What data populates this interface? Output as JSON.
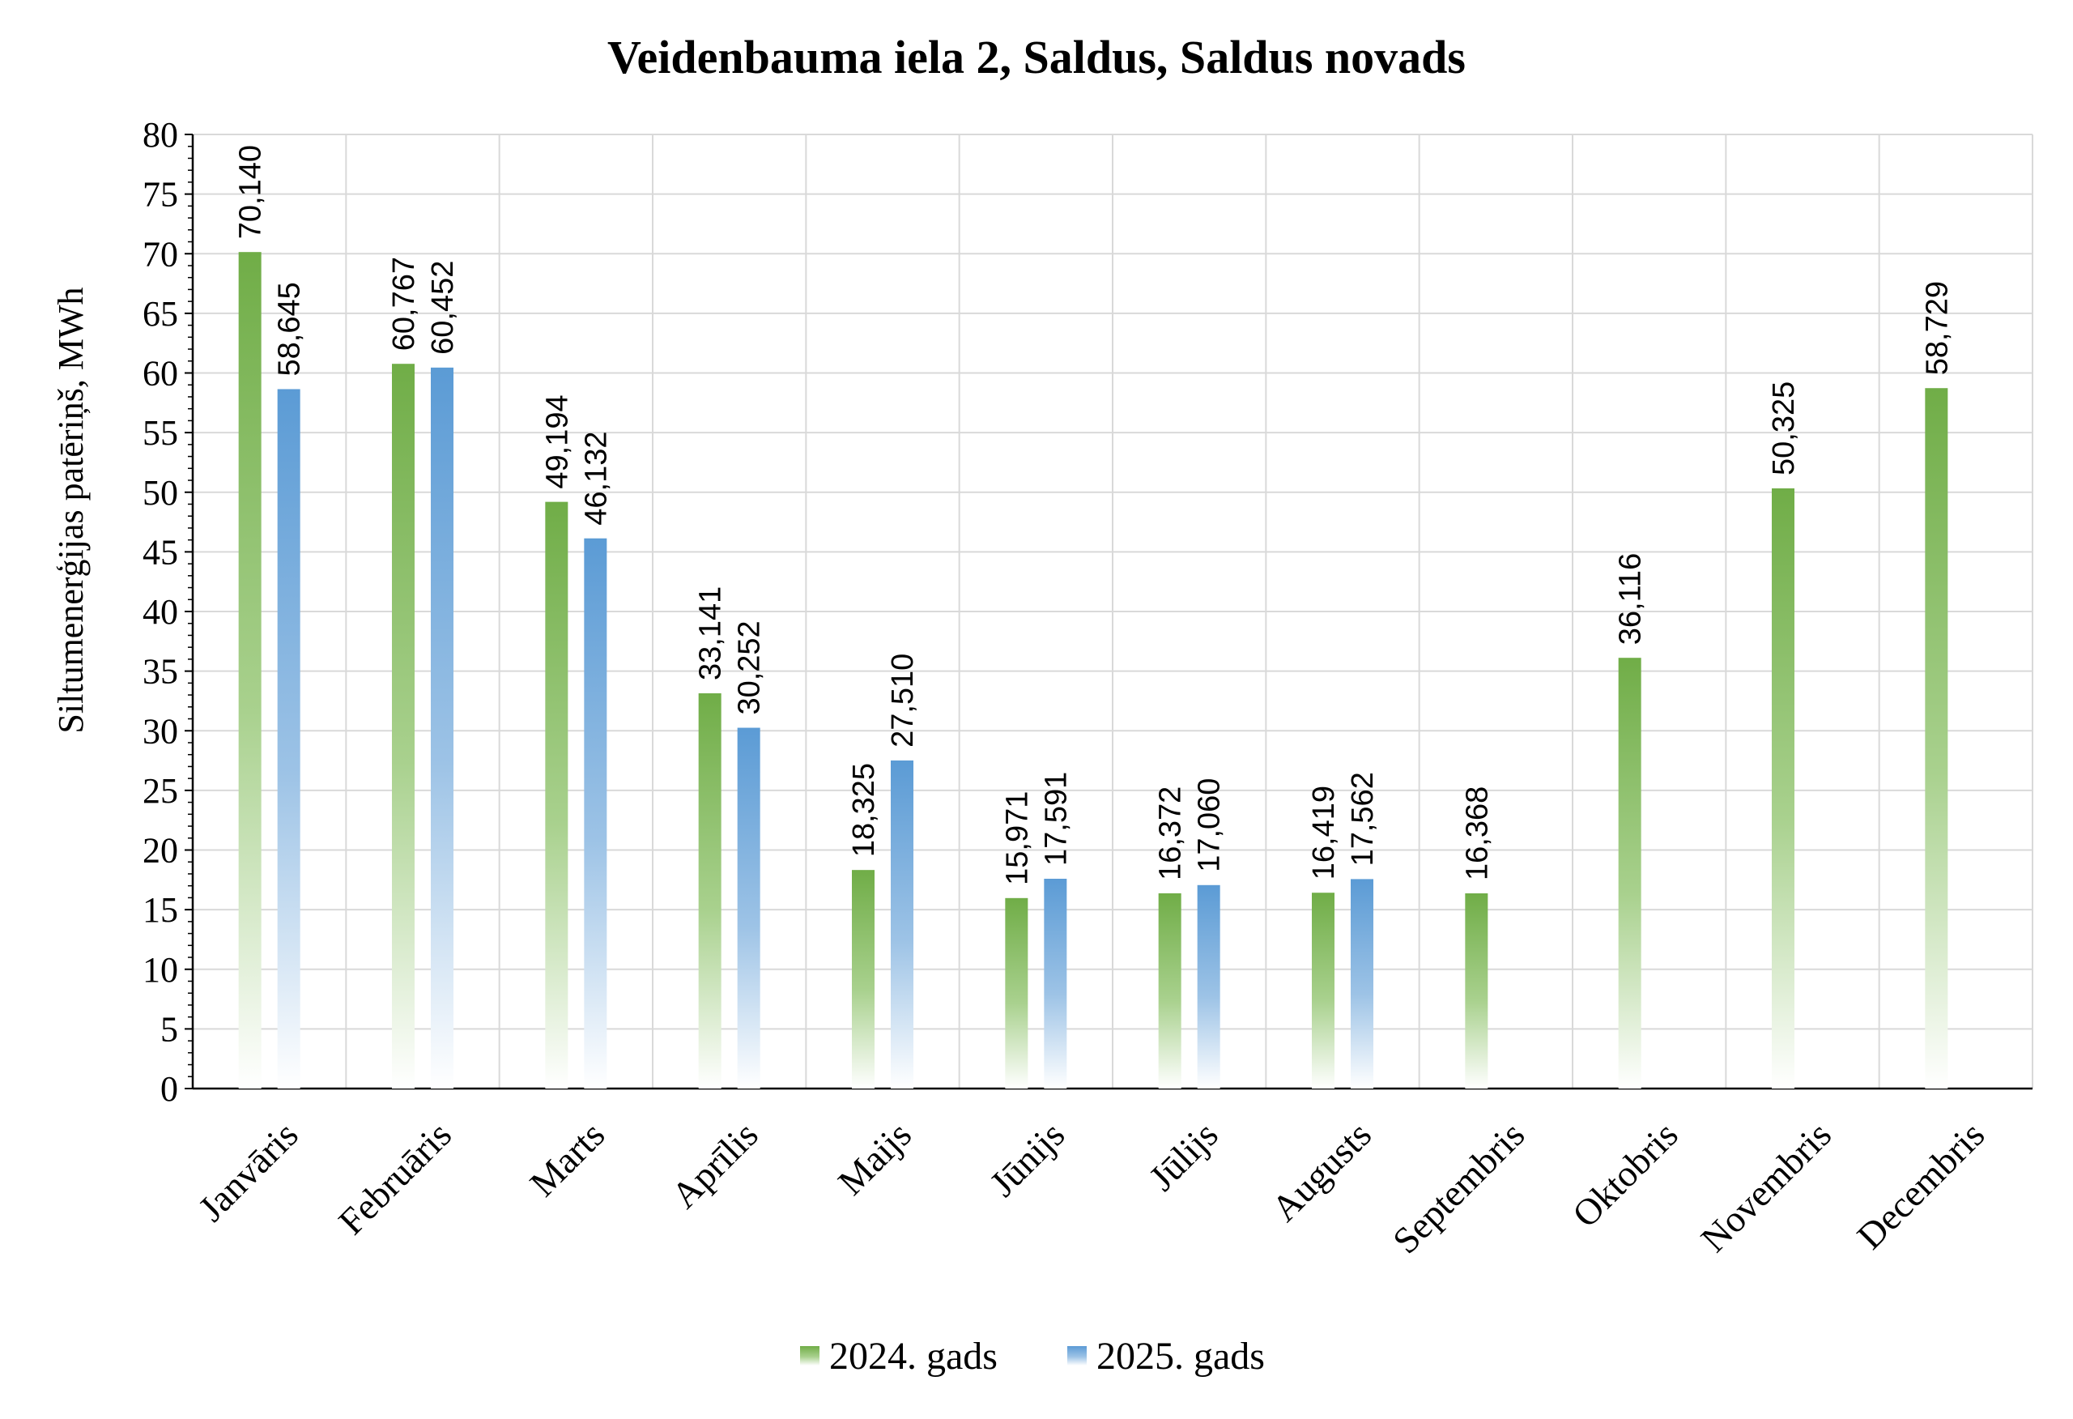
{
  "chart_data": {
    "type": "bar",
    "title": "Veidenbauma iela 2, Saldus, Saldus novads",
    "xlabel": "",
    "ylabel": "Siltumenerģijas patēriņš, MWh",
    "ylim": [
      0,
      80
    ],
    "ytick_step": 5,
    "grid": true,
    "legend_position": "bottom",
    "categories": [
      "Janvāris",
      "Februāris",
      "Marts",
      "Aprīlis",
      "Maijs",
      "Jūnijs",
      "Jūlijs",
      "Augusts",
      "Septembris",
      "Oktobris",
      "Novembris",
      "Decembris"
    ],
    "series": [
      {
        "name": "2024. gads",
        "color": "#70ad47",
        "values": [
          70.14,
          60.767,
          49.194,
          33.141,
          18.325,
          15.971,
          16.372,
          16.419,
          16.368,
          36.116,
          50.325,
          58.729
        ],
        "labels": [
          "70,140",
          "60,767",
          "49,194",
          "33,141",
          "18,325",
          "15,971",
          "16,372",
          "16,419",
          "16,368",
          "36,116",
          "50,325",
          "58,729"
        ]
      },
      {
        "name": "2025. gads",
        "color": "#5b9bd5",
        "values": [
          58.645,
          60.452,
          46.132,
          30.252,
          27.51,
          17.591,
          17.06,
          17.562,
          null,
          null,
          null,
          null
        ],
        "labels": [
          "58,645",
          "60,452",
          "46,132",
          "30,252",
          "27,510",
          "17,591",
          "17,060",
          "17,562",
          "",
          "",
          "",
          ""
        ]
      }
    ]
  }
}
